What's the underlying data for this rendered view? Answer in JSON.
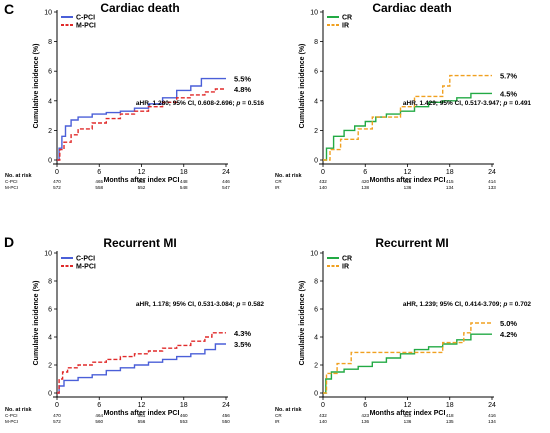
{
  "panel_letters": [
    "C",
    "D"
  ],
  "chart_data": [
    {
      "type": "line",
      "step": true,
      "title": "Cardiac death",
      "xlabel": "Months after index PCI",
      "ylabel": "Cumulative incidence (%)",
      "xlim": [
        0,
        24
      ],
      "ylim": [
        0,
        10
      ],
      "xticks": [
        "0",
        "6",
        "12",
        "18",
        "24"
      ],
      "yticks": [
        "0",
        "2",
        "4",
        "6",
        "8",
        "10"
      ],
      "legend_position": "top-left",
      "annotation": "aHR, 1.280; 95% CI, 0.608-2.696; p = 0.516",
      "series": [
        {
          "name": "C-PCI",
          "color": "#4a5fd8",
          "dash": "solid",
          "end_label": "5.5%",
          "x": [
            0,
            0.3,
            0.7,
            1.2,
            2,
            3,
            5,
            7,
            9,
            11,
            13,
            15,
            17,
            19,
            20.5,
            24
          ],
          "y": [
            0,
            0.8,
            1.6,
            2.3,
            2.7,
            2.9,
            3.1,
            3.2,
            3.3,
            3.5,
            3.8,
            4.2,
            4.7,
            5.0,
            5.5,
            5.5
          ]
        },
        {
          "name": "M-PCI",
          "color": "#e02a2a",
          "dash": "dashed",
          "end_label": "4.8%",
          "x": [
            0,
            0.4,
            1,
            2,
            3,
            5,
            7,
            9,
            11,
            13,
            15,
            17,
            19,
            21,
            22.5,
            24
          ],
          "y": [
            0,
            0.7,
            1.2,
            1.7,
            2.1,
            2.5,
            2.8,
            3.1,
            3.3,
            3.6,
            3.9,
            4.2,
            4.4,
            4.6,
            4.8,
            4.8
          ]
        }
      ],
      "at_risk": {
        "header": "No. at risk",
        "groups": [
          "C-PCI",
          "M-PCI"
        ],
        "values": [
          [
            "470",
            "465",
            "453",
            "448",
            "446"
          ],
          [
            "572",
            "558",
            "552",
            "548",
            "547"
          ]
        ]
      }
    },
    {
      "type": "line",
      "step": true,
      "title": "Cardiac death",
      "xlabel": "Months after index PCI",
      "ylabel": "Cumulative incidence (%)",
      "xlim": [
        0,
        24
      ],
      "ylim": [
        0,
        10
      ],
      "xticks": [
        "0",
        "6",
        "12",
        "18",
        "24"
      ],
      "yticks": [
        "0",
        "2",
        "4",
        "6",
        "8",
        "10"
      ],
      "legend_position": "top-left",
      "annotation": "aHR, 1.429; 95% CI, 0.517-3.947; p = 0.491",
      "series": [
        {
          "name": "CR",
          "color": "#22aa44",
          "dash": "solid",
          "end_label": "4.5%",
          "x": [
            0,
            0.5,
            1.5,
            3,
            4.5,
            6,
            7.5,
            9,
            11,
            13,
            15,
            17,
            19,
            21,
            24
          ],
          "y": [
            0,
            0.8,
            1.6,
            2.0,
            2.3,
            2.6,
            2.9,
            3.1,
            3.3,
            3.6,
            3.9,
            4.0,
            4.2,
            4.5,
            4.5
          ]
        },
        {
          "name": "IR",
          "color": "#f0a020",
          "dash": "dashed",
          "end_label": "5.7%",
          "x": [
            0,
            1,
            2.5,
            5,
            7,
            9,
            11,
            13,
            15,
            17,
            18,
            24
          ],
          "y": [
            0,
            0.7,
            1.4,
            2.1,
            2.9,
            2.9,
            3.6,
            4.3,
            4.3,
            5.0,
            5.7,
            5.7
          ]
        }
      ],
      "at_risk": {
        "header": "No. at risk",
        "groups": [
          "CR",
          "IR"
        ],
        "values": [
          [
            "432",
            "420",
            "416",
            "415",
            "414"
          ],
          [
            "140",
            "138",
            "136",
            "134",
            "133"
          ]
        ]
      }
    },
    {
      "type": "line",
      "step": true,
      "title": "Recurrent MI",
      "xlabel": "Months after index PCI",
      "ylabel": "Cumulative incidence (%)",
      "xlim": [
        0,
        24
      ],
      "ylim": [
        0,
        10
      ],
      "xticks": [
        "0",
        "6",
        "12",
        "18",
        "24"
      ],
      "yticks": [
        "0",
        "2",
        "4",
        "6",
        "8",
        "10"
      ],
      "legend_position": "top-left",
      "annotation": "aHR, 1.178; 95% CI, 0.531-3.084; p = 0.582",
      "series": [
        {
          "name": "C-PCI",
          "color": "#4a5fd8",
          "dash": "solid",
          "end_label": "3.5%",
          "x": [
            0,
            0.3,
            1,
            3,
            5,
            7,
            9,
            11,
            13,
            15,
            17,
            19,
            21,
            22.5,
            24
          ],
          "y": [
            0,
            0.5,
            0.9,
            1.1,
            1.3,
            1.6,
            1.8,
            2.0,
            2.2,
            2.4,
            2.6,
            2.8,
            3.1,
            3.5,
            3.5
          ]
        },
        {
          "name": "M-PCI",
          "color": "#e02a2a",
          "dash": "dashed",
          "end_label": "4.3%",
          "x": [
            0,
            0.3,
            0.8,
            1.5,
            3,
            5,
            7,
            9,
            11,
            13,
            15,
            17,
            19,
            21,
            22,
            24
          ],
          "y": [
            0,
            1.0,
            1.5,
            1.8,
            2.0,
            2.2,
            2.4,
            2.6,
            2.8,
            3.0,
            3.2,
            3.4,
            3.7,
            4.0,
            4.3,
            4.3
          ]
        }
      ],
      "at_risk": {
        "header": "No. at risk",
        "groups": [
          "C-PCI",
          "M-PCI"
        ],
        "values": [
          [
            "470",
            "464",
            "461",
            "460",
            "456"
          ],
          [
            "572",
            "560",
            "556",
            "553",
            "550"
          ]
        ]
      }
    },
    {
      "type": "line",
      "step": true,
      "title": "Recurrent MI",
      "xlabel": "Months after index PCI",
      "ylabel": "Cumulative incidence (%)",
      "xlim": [
        0,
        24
      ],
      "ylim": [
        0,
        10
      ],
      "xticks": [
        "0",
        "6",
        "12",
        "18",
        "24"
      ],
      "yticks": [
        "0",
        "2",
        "4",
        "6",
        "8",
        "10"
      ],
      "legend_position": "top-left",
      "annotation": "aHR, 1.239; 95% CI, 0.414-3.709; p = 0.702",
      "series": [
        {
          "name": "CR",
          "color": "#22aa44",
          "dash": "solid",
          "end_label": "4.2%",
          "x": [
            0,
            0.4,
            1.2,
            3,
            5,
            7,
            9,
            11,
            13,
            15,
            17,
            19,
            21,
            24
          ],
          "y": [
            0,
            1.0,
            1.5,
            1.7,
            1.9,
            2.2,
            2.5,
            2.8,
            3.1,
            3.3,
            3.5,
            3.8,
            4.2,
            4.2
          ]
        },
        {
          "name": "IR",
          "color": "#f0a020",
          "dash": "dashed",
          "end_label": "5.0%",
          "x": [
            0,
            0.5,
            2,
            4,
            7,
            10,
            13,
            15,
            17,
            19,
            20,
            21,
            24
          ],
          "y": [
            0,
            1.4,
            2.1,
            2.9,
            2.9,
            2.9,
            2.9,
            2.9,
            3.6,
            3.6,
            4.3,
            5.0,
            5.0
          ]
        }
      ],
      "at_risk": {
        "header": "No. at risk",
        "groups": [
          "CR",
          "IR"
        ],
        "values": [
          [
            "432",
            "423",
            "420",
            "418",
            "416"
          ],
          [
            "140",
            "136",
            "136",
            "135",
            "134"
          ]
        ]
      }
    }
  ]
}
